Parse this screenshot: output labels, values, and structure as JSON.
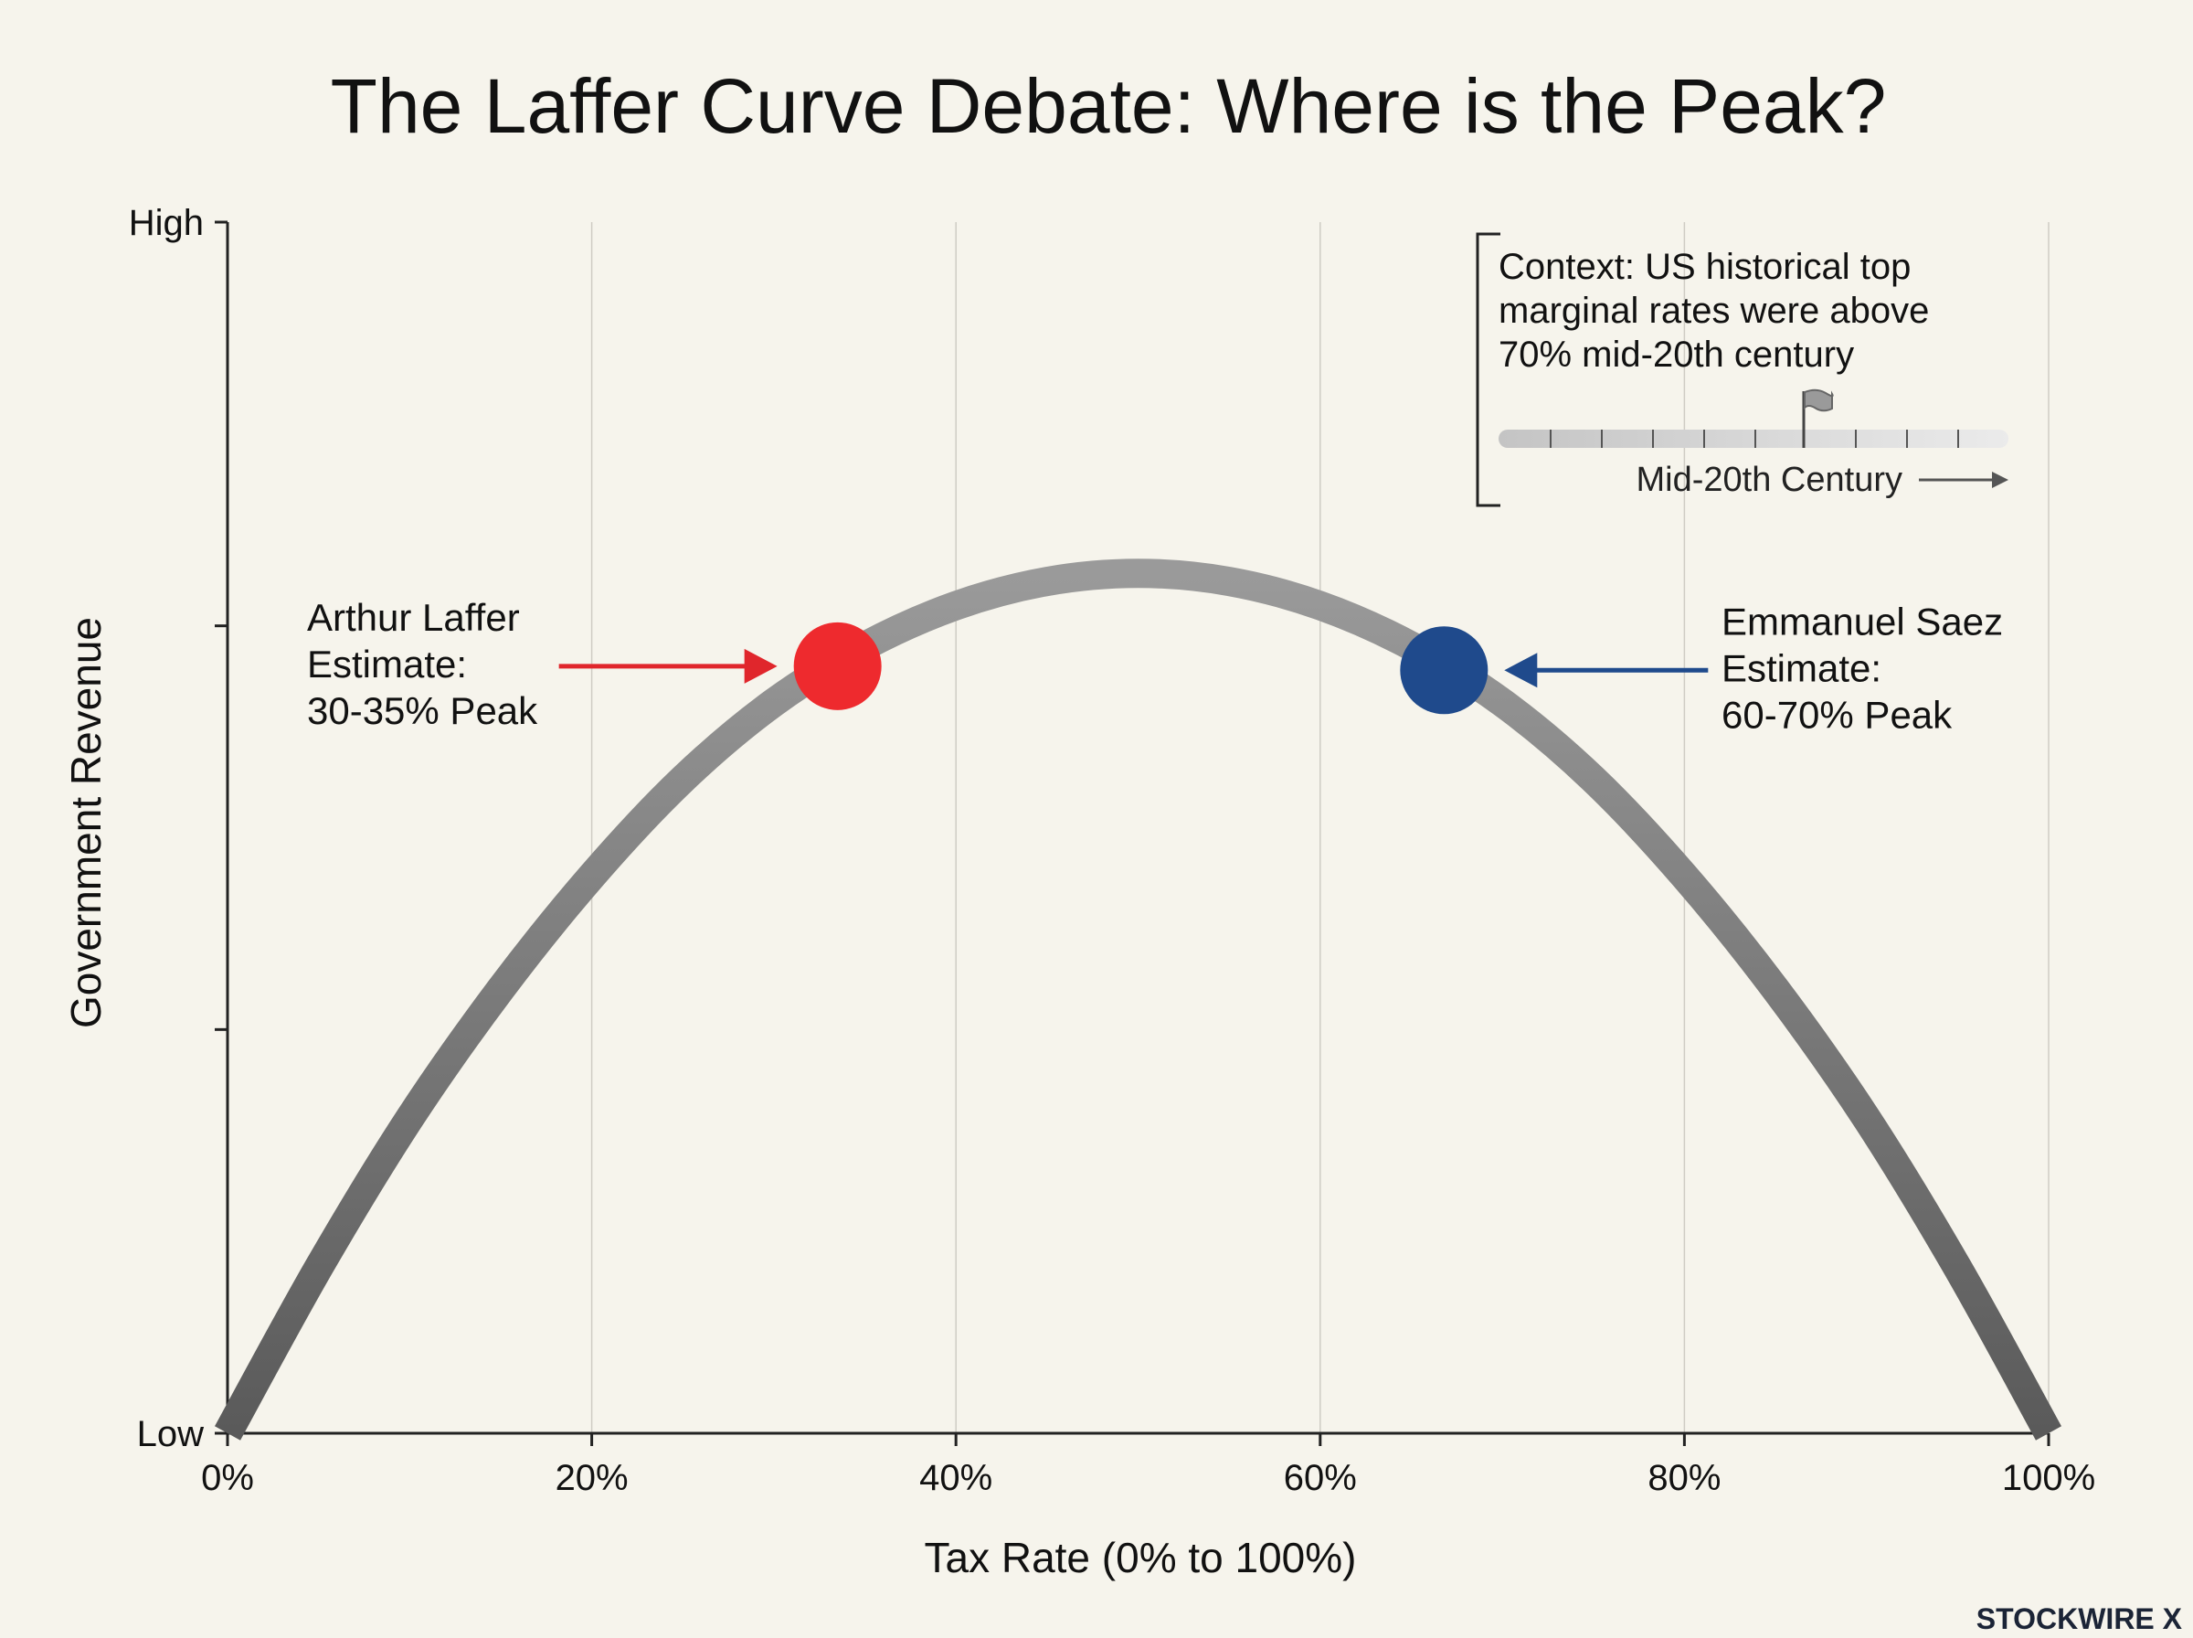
{
  "chart_data": {
    "type": "line",
    "title": "The Laffer Curve Debate: Where is the Peak?",
    "xlabel": "Tax Rate (0% to 100%)",
    "ylabel": "Government Revenue",
    "x_ticks": [
      "0%",
      "20%",
      "40%",
      "60%",
      "80%",
      "100%"
    ],
    "x_tick_values": [
      0,
      20,
      40,
      60,
      80,
      100
    ],
    "y_ticks": [
      "Low",
      "",
      "",
      "High"
    ],
    "y_tick_values": [
      0,
      1,
      2,
      3
    ],
    "xlim": [
      0,
      100
    ],
    "ylim": [
      0,
      3
    ],
    "grid": "vertical",
    "series": [
      {
        "color": "#777777",
        "x": [
          0,
          5,
          10,
          15,
          20,
          25,
          30,
          35,
          40,
          45,
          50,
          55,
          60,
          65,
          70,
          75,
          80,
          85,
          90,
          95,
          100
        ],
        "values": [
          0,
          0.41,
          0.78,
          1.1,
          1.38,
          1.62,
          1.81,
          1.95,
          2.05,
          2.11,
          2.13,
          2.11,
          2.05,
          1.95,
          1.81,
          1.62,
          1.38,
          1.1,
          0.78,
          0.41,
          0
        ]
      }
    ],
    "annotations": [
      {
        "lines": [
          "Arthur Laffer",
          "Estimate:",
          "30-35% Peak"
        ],
        "x": 33.5,
        "y": 1.9,
        "color": "#ee2a2e",
        "arrow_color": "#e0262c",
        "side": "left"
      },
      {
        "lines": [
          "Emmanuel Saez",
          "Estimate:",
          "60-70% Peak"
        ],
        "x": 66.8,
        "y": 1.89,
        "color": "#1f4a8c",
        "arrow_color": "#1f4a8c",
        "side": "right"
      }
    ],
    "context": {
      "lines": [
        "Context: US historical top",
        "marginal rates were above",
        "70% mid-20th century"
      ],
      "timeline_label": "Mid-20th Century"
    }
  },
  "watermark": "STOCKWIRE X"
}
